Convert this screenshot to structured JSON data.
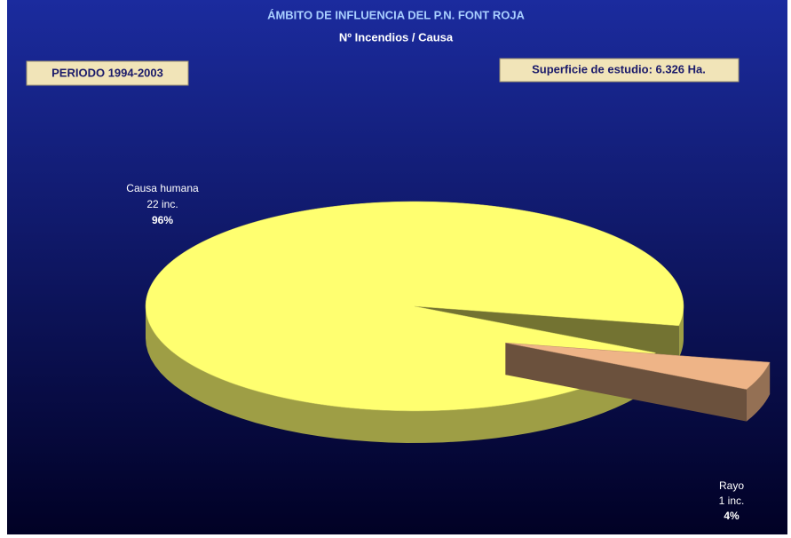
{
  "chart_data": {
    "type": "pie",
    "title": "ÁMBITO DE INFLUENCIA DEL P.N. FONT ROJA",
    "subtitle": "Nº Incendios / Causa",
    "annotations": [
      "PERIODO 1994-2003",
      "Superficie de estudio: 6.326 Ha."
    ],
    "categories": [
      "Causa humana",
      "Rayo"
    ],
    "values": [
      22,
      1
    ],
    "value_labels": [
      "22 inc.",
      "1 inc."
    ],
    "percent_labels": [
      "96%",
      "4%"
    ],
    "colors": [
      "#ffff70",
      "#eeb487"
    ],
    "exploded": [
      false,
      true
    ]
  }
}
